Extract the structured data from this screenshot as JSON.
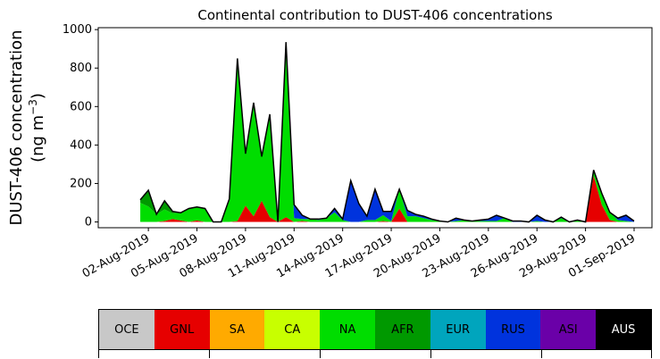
{
  "chart_data": {
    "type": "area",
    "title": "Continental contribution to DUST-406 concentrations",
    "ylabel_line1": "DUST-406 concentration",
    "ylabel_unit": "(ng m",
    "ylabel_exp": "−3",
    "ylabel_close": ")",
    "ylim": [
      -30,
      1010
    ],
    "yticks": [
      0,
      200,
      400,
      600,
      800,
      1000
    ],
    "x_start": "2019-08-01",
    "x_end": "2019-09-01",
    "xticks": [
      "02-Aug-2019",
      "05-Aug-2019",
      "08-Aug-2019",
      "11-Aug-2019",
      "14-Aug-2019",
      "17-Aug-2019",
      "20-Aug-2019",
      "23-Aug-2019",
      "26-Aug-2019",
      "29-Aug-2019",
      "01-Sep-2019"
    ],
    "xtick_dates": [
      "2019-08-02",
      "2019-08-05",
      "2019-08-08",
      "2019-08-11",
      "2019-08-14",
      "2019-08-17",
      "2019-08-20",
      "2019-08-23",
      "2019-08-26",
      "2019-08-29",
      "2019-09-01"
    ],
    "x": [
      "2019-08-01 12:00",
      "2019-08-02 00:00",
      "2019-08-02 12:00",
      "2019-08-03 00:00",
      "2019-08-03 12:00",
      "2019-08-04 00:00",
      "2019-08-04 12:00",
      "2019-08-05 00:00",
      "2019-08-05 12:00",
      "2019-08-06 00:00",
      "2019-08-06 12:00",
      "2019-08-07 00:00",
      "2019-08-07 12:00",
      "2019-08-08 00:00",
      "2019-08-08 12:00",
      "2019-08-09 00:00",
      "2019-08-09 12:00",
      "2019-08-10 00:00",
      "2019-08-10 12:00",
      "2019-08-11 00:00",
      "2019-08-11 12:00",
      "2019-08-12 00:00",
      "2019-08-12 12:00",
      "2019-08-13 00:00",
      "2019-08-13 12:00",
      "2019-08-14 00:00",
      "2019-08-14 12:00",
      "2019-08-15 00:00",
      "2019-08-15 12:00",
      "2019-08-16 00:00",
      "2019-08-16 12:00",
      "2019-08-17 00:00",
      "2019-08-17 12:00",
      "2019-08-18 00:00",
      "2019-08-18 12:00",
      "2019-08-19 00:00",
      "2019-08-19 12:00",
      "2019-08-20 00:00",
      "2019-08-20 12:00",
      "2019-08-21 00:00",
      "2019-08-21 12:00",
      "2019-08-22 00:00",
      "2019-08-22 12:00",
      "2019-08-23 00:00",
      "2019-08-23 12:00",
      "2019-08-24 00:00",
      "2019-08-24 12:00",
      "2019-08-25 00:00",
      "2019-08-25 12:00",
      "2019-08-26 00:00",
      "2019-08-26 12:00",
      "2019-08-27 00:00",
      "2019-08-27 12:00",
      "2019-08-28 00:00",
      "2019-08-28 12:00",
      "2019-08-29 00:00",
      "2019-08-29 12:00",
      "2019-08-30 00:00",
      "2019-08-30 12:00",
      "2019-08-31 00:00",
      "2019-08-31 12:00",
      "2019-09-01 00:00"
    ],
    "series": [
      {
        "name": "OCE",
        "color": "#c8c8c8",
        "values": [
          0,
          0,
          0,
          0,
          0,
          0,
          0,
          0,
          0,
          0,
          0,
          0,
          0,
          0,
          0,
          0,
          0,
          0,
          0,
          0,
          0,
          0,
          0,
          0,
          0,
          0,
          0,
          0,
          0,
          0,
          0,
          0,
          0,
          0,
          0,
          0,
          0,
          0,
          0,
          0,
          0,
          0,
          0,
          0,
          0,
          0,
          0,
          0,
          0,
          0,
          0,
          0,
          0,
          0,
          0,
          0,
          0,
          0,
          0,
          0,
          0,
          0
        ]
      },
      {
        "name": "GNL",
        "color": "#e60000",
        "values": [
          0,
          0,
          0,
          5,
          15,
          8,
          0,
          8,
          0,
          0,
          0,
          0,
          5,
          85,
          30,
          110,
          25,
          0,
          25,
          0,
          5,
          0,
          0,
          0,
          0,
          0,
          0,
          0,
          0,
          0,
          5,
          0,
          70,
          0,
          0,
          0,
          0,
          0,
          0,
          0,
          0,
          0,
          0,
          0,
          0,
          0,
          0,
          0,
          0,
          0,
          0,
          0,
          0,
          0,
          0,
          0,
          240,
          90,
          10,
          0,
          0,
          0
        ]
      },
      {
        "name": "SA",
        "color": "#ffaa00",
        "values": [
          0,
          0,
          0,
          0,
          0,
          0,
          0,
          0,
          0,
          0,
          0,
          0,
          0,
          0,
          0,
          0,
          0,
          0,
          0,
          0,
          0,
          0,
          0,
          0,
          0,
          0,
          0,
          0,
          0,
          0,
          0,
          0,
          0,
          0,
          0,
          0,
          0,
          0,
          0,
          0,
          0,
          0,
          0,
          0,
          0,
          0,
          0,
          0,
          0,
          0,
          0,
          0,
          0,
          0,
          0,
          0,
          0,
          0,
          0,
          0,
          0,
          0
        ]
      },
      {
        "name": "CA",
        "color": "#c8ff00",
        "values": [
          0,
          0,
          0,
          0,
          0,
          0,
          0,
          0,
          0,
          0,
          0,
          0,
          0,
          0,
          0,
          0,
          0,
          0,
          0,
          0,
          0,
          0,
          0,
          0,
          0,
          0,
          0,
          0,
          0,
          0,
          0,
          0,
          0,
          0,
          0,
          0,
          0,
          0,
          0,
          0,
          0,
          0,
          0,
          0,
          0,
          0,
          0,
          0,
          0,
          0,
          0,
          0,
          0,
          0,
          0,
          0,
          0,
          0,
          0,
          0,
          0,
          0
        ]
      },
      {
        "name": "NA",
        "color": "#00dd00",
        "values": [
          100,
          80,
          40,
          60,
          30,
          40,
          70,
          70,
          70,
          0,
          0,
          120,
          845,
          270,
          590,
          230,
          535,
          0,
          910,
          20,
          10,
          15,
          10,
          20,
          50,
          10,
          0,
          0,
          10,
          10,
          30,
          5,
          100,
          30,
          30,
          20,
          10,
          5,
          0,
          5,
          10,
          5,
          5,
          5,
          5,
          20,
          0,
          0,
          0,
          5,
          0,
          0,
          20,
          0,
          10,
          0,
          30,
          60,
          40,
          10,
          5,
          0
        ]
      },
      {
        "name": "AFR",
        "color": "#009900",
        "values": [
          15,
          85,
          0,
          45,
          10,
          0,
          0,
          0,
          0,
          0,
          0,
          0,
          0,
          0,
          0,
          0,
          0,
          0,
          0,
          0,
          0,
          0,
          0,
          0,
          0,
          0,
          0,
          0,
          0,
          0,
          0,
          0,
          0,
          0,
          0,
          0,
          0,
          0,
          0,
          0,
          0,
          0,
          0,
          0,
          0,
          0,
          0,
          0,
          0,
          0,
          0,
          0,
          0,
          0,
          0,
          0,
          0,
          0,
          0,
          0,
          0,
          0
        ]
      },
      {
        "name": "EUR",
        "color": "#00a5bd",
        "values": [
          0,
          0,
          0,
          0,
          0,
          0,
          0,
          0,
          0,
          0,
          0,
          0,
          0,
          0,
          0,
          0,
          0,
          0,
          0,
          0,
          0,
          0,
          0,
          0,
          0,
          0,
          0,
          0,
          0,
          0,
          0,
          0,
          0,
          0,
          0,
          0,
          0,
          0,
          0,
          0,
          0,
          0,
          0,
          0,
          0,
          0,
          0,
          0,
          0,
          0,
          0,
          0,
          0,
          0,
          0,
          0,
          0,
          0,
          0,
          0,
          0,
          0
        ]
      },
      {
        "name": "RUS",
        "color": "#0033dd",
        "values": [
          0,
          0,
          0,
          0,
          0,
          0,
          0,
          0,
          0,
          0,
          0,
          0,
          0,
          0,
          0,
          0,
          0,
          0,
          0,
          70,
          20,
          0,
          5,
          0,
          20,
          5,
          215,
          95,
          20,
          160,
          20,
          50,
          0,
          30,
          10,
          10,
          5,
          0,
          0,
          15,
          0,
          0,
          5,
          10,
          30,
          0,
          5,
          5,
          0,
          30,
          10,
          0,
          5,
          0,
          0,
          0,
          0,
          0,
          0,
          10,
          30,
          5
        ]
      },
      {
        "name": "ASI",
        "color": "#6a00a8",
        "values": [
          0,
          0,
          0,
          0,
          0,
          0,
          0,
          0,
          0,
          0,
          0,
          0,
          0,
          0,
          0,
          0,
          0,
          0,
          0,
          0,
          0,
          0,
          0,
          0,
          0,
          0,
          0,
          0,
          0,
          0,
          0,
          0,
          0,
          0,
          0,
          0,
          0,
          0,
          0,
          0,
          0,
          0,
          0,
          0,
          0,
          0,
          0,
          0,
          0,
          0,
          0,
          0,
          0,
          0,
          0,
          0,
          0,
          0,
          0,
          0,
          0,
          0
        ]
      },
      {
        "name": "AUS",
        "color": "#000000",
        "values": [
          0,
          0,
          0,
          0,
          0,
          0,
          0,
          0,
          0,
          0,
          0,
          0,
          0,
          0,
          0,
          0,
          0,
          0,
          0,
          0,
          0,
          0,
          0,
          0,
          0,
          0,
          0,
          0,
          0,
          0,
          0,
          0,
          0,
          0,
          0,
          0,
          0,
          0,
          0,
          0,
          0,
          0,
          0,
          0,
          0,
          0,
          0,
          0,
          0,
          0,
          0,
          0,
          0,
          0,
          0,
          0,
          0,
          0,
          0,
          0,
          0,
          0
        ]
      }
    ]
  },
  "legend": [
    {
      "label": "OCE",
      "color": "#c8c8c8",
      "text_color": "#000000"
    },
    {
      "label": "GNL",
      "color": "#e60000",
      "text_color": "#000000"
    },
    {
      "label": "SA",
      "color": "#ffaa00",
      "text_color": "#000000"
    },
    {
      "label": "CA",
      "color": "#c8ff00",
      "text_color": "#000000"
    },
    {
      "label": "NA",
      "color": "#00dd00",
      "text_color": "#000000"
    },
    {
      "label": "AFR",
      "color": "#009900",
      "text_color": "#000000"
    },
    {
      "label": "EUR",
      "color": "#00a5bd",
      "text_color": "#000000"
    },
    {
      "label": "RUS",
      "color": "#0033dd",
      "text_color": "#000000"
    },
    {
      "label": "ASI",
      "color": "#6a00a8",
      "text_color": "#000000"
    },
    {
      "label": "AUS",
      "color": "#000000",
      "text_color": "#ffffff"
    }
  ]
}
